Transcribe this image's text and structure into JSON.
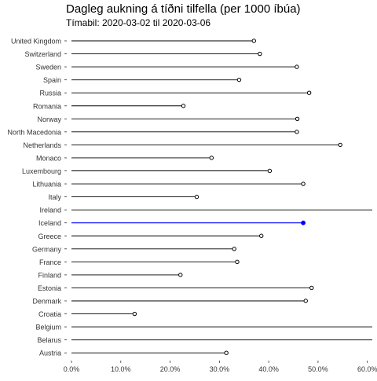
{
  "chart_data": {
    "type": "lollipop",
    "title": "Dagleg aukning á tíðni tilfella (per 1000 íbúa)",
    "subtitle": "Tímabil: 2020-03-02 til 2020-03-06",
    "xlabel": "",
    "ylabel": "",
    "xlim": [
      0,
      0.61
    ],
    "x_ticks": [
      "0.0%",
      "10.0%",
      "20.0%",
      "30.0%",
      "40.0%",
      "50.0%",
      "60.0%"
    ],
    "x_tick_values": [
      0,
      0.1,
      0.2,
      0.3,
      0.4,
      0.5,
      0.6
    ],
    "grid": false,
    "highlight_category": "Iceland",
    "highlight_color": "#0000ff",
    "base_color": "#000000",
    "categories": [
      "United Kingdom",
      "Switzerland",
      "Sweden",
      "Spain",
      "Russia",
      "Romania",
      "Norway",
      "North Macedonia",
      "Netherlands",
      "Monaco",
      "Luxembourg",
      "Lithuania",
      "Italy",
      "Ireland",
      "Iceland",
      "Greece",
      "Germany",
      "France",
      "Finland",
      "Estonia",
      "Denmark",
      "Croatia",
      "Belgium",
      "Belarus",
      "Austria"
    ],
    "values": [
      0.37,
      0.382,
      0.457,
      0.34,
      0.482,
      0.227,
      0.458,
      0.457,
      0.545,
      0.284,
      0.402,
      0.47,
      0.254,
      0.62,
      0.47,
      0.385,
      0.33,
      0.336,
      0.221,
      0.487,
      0.475,
      0.128,
      0.62,
      0.62,
      0.314
    ],
    "truncated": [
      false,
      false,
      false,
      false,
      false,
      false,
      false,
      false,
      false,
      false,
      false,
      false,
      false,
      true,
      false,
      false,
      false,
      false,
      false,
      false,
      false,
      false,
      true,
      true,
      false
    ]
  }
}
